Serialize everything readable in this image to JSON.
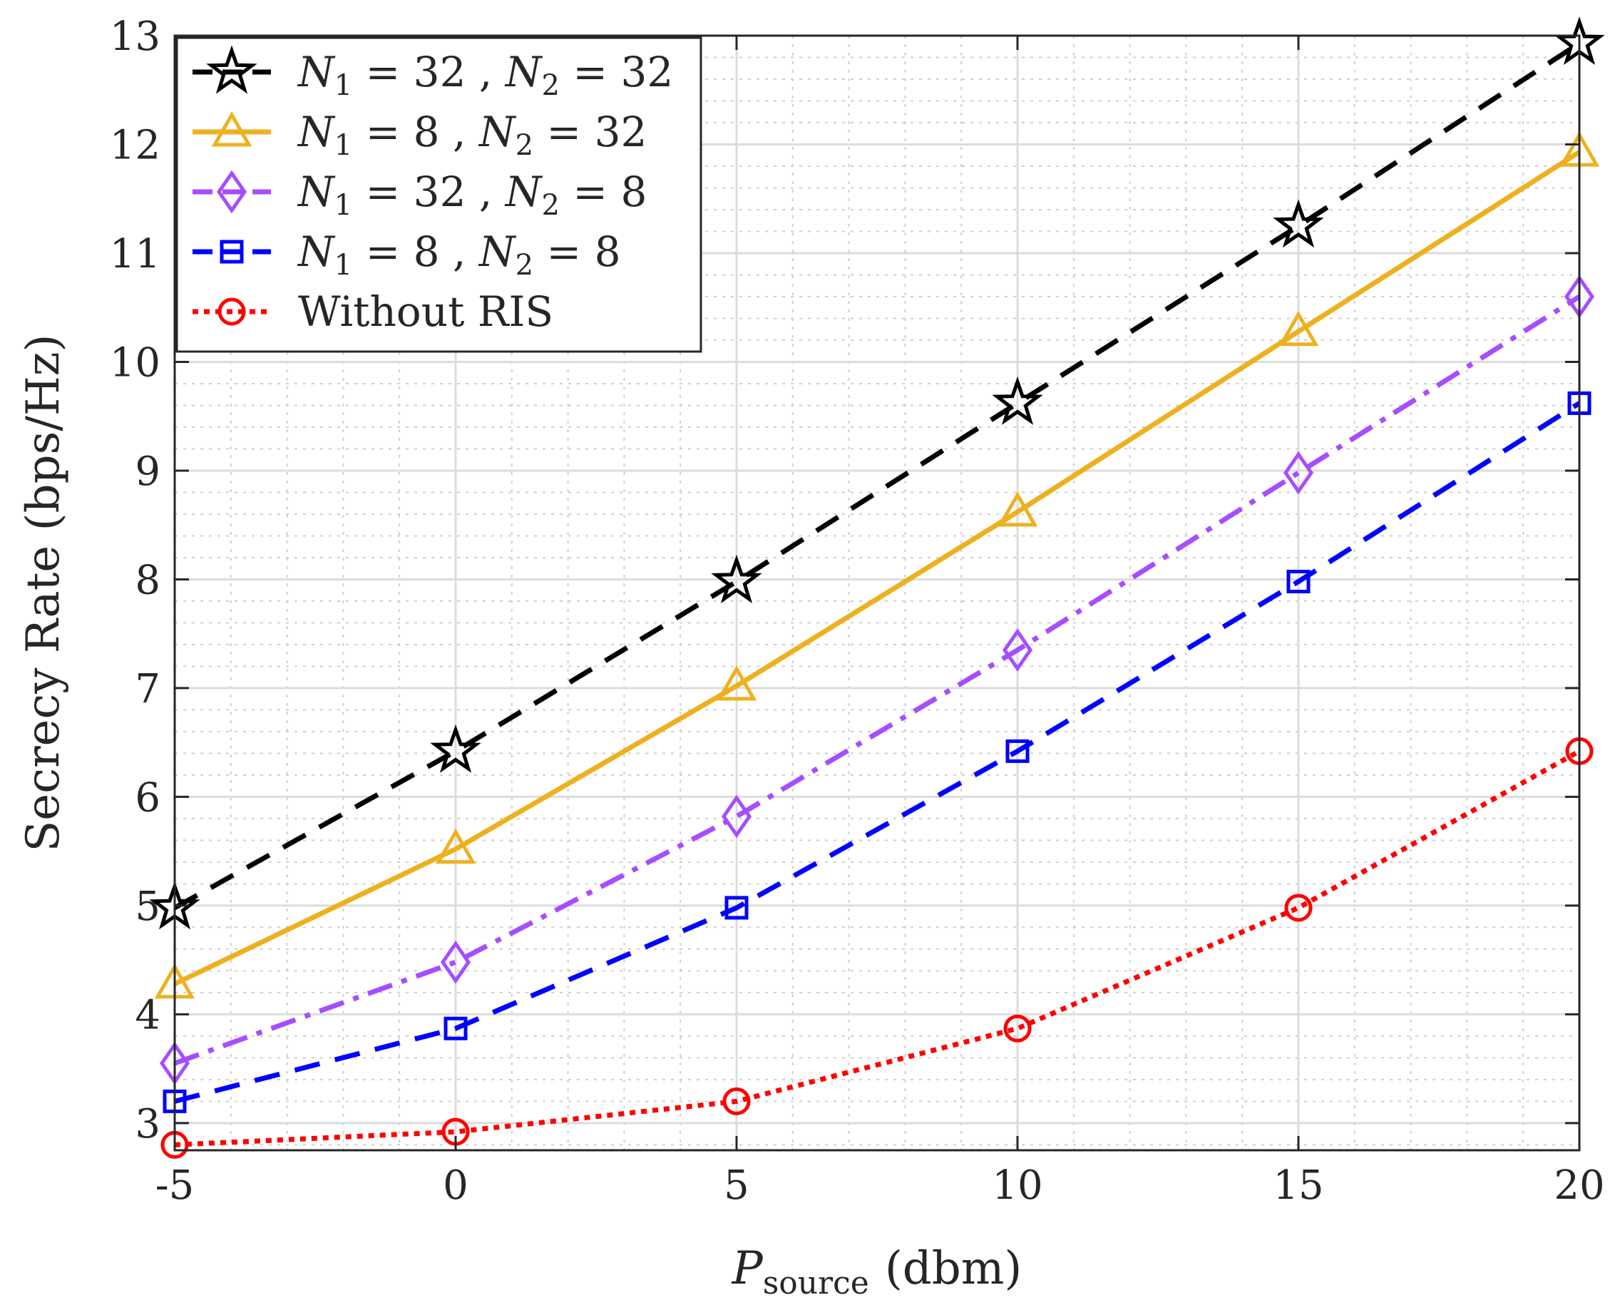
{
  "chart_data": {
    "type": "line",
    "title": "",
    "xlabel": "P_source (dbm)",
    "xlabel_main": "P",
    "xlabel_sub": "source",
    "xlabel_unit": "(dbm)",
    "ylabel": "Secrecy Rate (bps/Hz)",
    "x": [
      -5,
      0,
      5,
      10,
      15,
      20
    ],
    "xticks": [
      "-5",
      "0",
      "5",
      "10",
      "15",
      "20"
    ],
    "yticks": [
      "3",
      "4",
      "5",
      "6",
      "7",
      "8",
      "9",
      "10",
      "11",
      "12",
      "13"
    ],
    "xlim": [
      -5,
      20
    ],
    "ylim": [
      2.75,
      13
    ],
    "grid": true,
    "minor_grid": true,
    "legend_position": "top-left",
    "series": [
      {
        "name": "N1 = 32 , N2 = 32",
        "label_parts": [
          "N",
          "1",
          " = 32 , ",
          "N",
          "2",
          " = 32"
        ],
        "color": "#000000",
        "line_style": "dashed",
        "marker": "star",
        "values": [
          4.98,
          6.42,
          7.98,
          9.62,
          11.25,
          12.93
        ]
      },
      {
        "name": "N1 = 8 , N2 = 32",
        "label_parts": [
          "N",
          "1",
          " = 8 , ",
          "N",
          "2",
          " = 32"
        ],
        "color": "#EDB120",
        "line_style": "solid",
        "marker": "triangle",
        "values": [
          4.28,
          5.52,
          7.02,
          8.62,
          10.28,
          11.93
        ]
      },
      {
        "name": "N1 = 32 , N2 = 8",
        "label_parts": [
          "N",
          "1",
          " = 32 , ",
          "N",
          "2",
          " = 8"
        ],
        "color": "#A64DFF",
        "line_style": "dashdot",
        "marker": "diamond",
        "values": [
          3.55,
          4.48,
          5.82,
          7.35,
          8.98,
          10.6
        ]
      },
      {
        "name": "N1 = 8 , N2 = 8",
        "label_parts": [
          "N",
          "1",
          " = 8 , ",
          "N",
          "2",
          " = 8"
        ],
        "color": "#0000FF",
        "line_style": "dashed",
        "marker": "square",
        "values": [
          3.2,
          3.87,
          4.98,
          6.42,
          7.98,
          9.62
        ]
      },
      {
        "name": "Without RIS",
        "label_parts": [
          "Without RIS"
        ],
        "color": "#FF0000",
        "line_style": "dotted",
        "marker": "circle",
        "values": [
          2.8,
          2.92,
          3.2,
          3.87,
          4.98,
          6.42
        ]
      }
    ]
  }
}
